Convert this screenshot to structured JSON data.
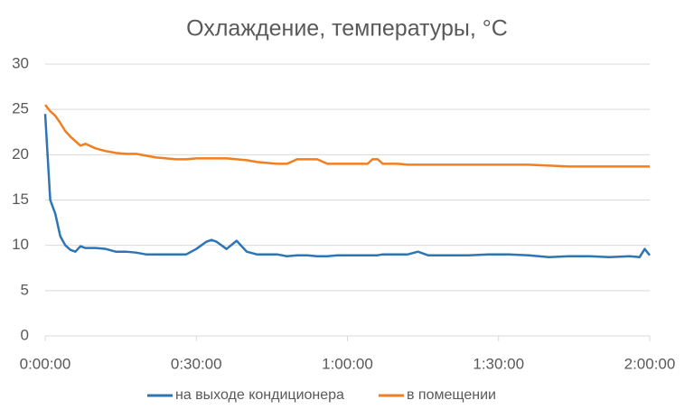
{
  "chart_data": {
    "type": "line",
    "title": "Охлаждение, температуры, °C",
    "x": [
      0,
      1,
      2,
      3,
      4,
      5,
      6,
      7,
      8,
      10,
      12,
      14,
      16,
      18,
      20,
      22,
      24,
      26,
      28,
      30,
      32,
      33,
      34,
      36,
      38,
      40,
      42,
      44,
      46,
      48,
      50,
      52,
      54,
      56,
      58,
      60,
      62,
      64,
      65,
      66,
      67,
      68,
      70,
      72,
      74,
      76,
      80,
      84,
      88,
      92,
      96,
      100,
      104,
      108,
      112,
      116,
      118,
      119,
      120
    ],
    "series": [
      {
        "name": "на выходе кондиционера",
        "color": "#2e75b6",
        "values": [
          24.5,
          15,
          13.5,
          11,
          10,
          9.5,
          9.3,
          9.9,
          9.7,
          9.7,
          9.6,
          9.3,
          9.3,
          9.2,
          9.0,
          9.0,
          9.0,
          9.0,
          9.0,
          9.6,
          10.4,
          10.6,
          10.4,
          9.6,
          10.5,
          9.3,
          9.0,
          9.0,
          9.0,
          8.8,
          8.9,
          8.9,
          8.8,
          8.8,
          8.9,
          8.9,
          8.9,
          8.9,
          8.9,
          8.9,
          9.0,
          9.0,
          9.0,
          9.0,
          9.3,
          8.9,
          8.9,
          8.9,
          9.0,
          9.0,
          8.9,
          8.7,
          8.8,
          8.8,
          8.7,
          8.8,
          8.7,
          9.6,
          8.9
        ]
      },
      {
        "name": "в помещении",
        "color": "#f07f22",
        "values": [
          25.5,
          24.8,
          24.3,
          23.5,
          22.6,
          22.0,
          21.5,
          21.0,
          21.2,
          20.7,
          20.4,
          20.2,
          20.1,
          20.1,
          19.9,
          19.7,
          19.6,
          19.5,
          19.5,
          19.6,
          19.6,
          19.6,
          19.6,
          19.6,
          19.5,
          19.4,
          19.2,
          19.1,
          19.0,
          19.0,
          19.5,
          19.5,
          19.5,
          19.0,
          19.0,
          19.0,
          19.0,
          19.0,
          19.5,
          19.5,
          19.0,
          19.0,
          19.0,
          18.9,
          18.9,
          18.9,
          18.9,
          18.9,
          18.9,
          18.9,
          18.9,
          18.8,
          18.7,
          18.7,
          18.7,
          18.7,
          18.7,
          18.7,
          18.7
        ]
      }
    ],
    "xlim": [
      0,
      120
    ],
    "xticks": [
      {
        "value": 0,
        "label": "0:00:00"
      },
      {
        "value": 30,
        "label": "0:30:00"
      },
      {
        "value": 60,
        "label": "1:00:00"
      },
      {
        "value": 90,
        "label": "1:30:00"
      },
      {
        "value": 120,
        "label": "2:00:00"
      }
    ],
    "ylim": [
      0,
      30
    ],
    "yticks": [
      0,
      5,
      10,
      15,
      20,
      25,
      30
    ],
    "grid": true,
    "legend": "bottom"
  }
}
